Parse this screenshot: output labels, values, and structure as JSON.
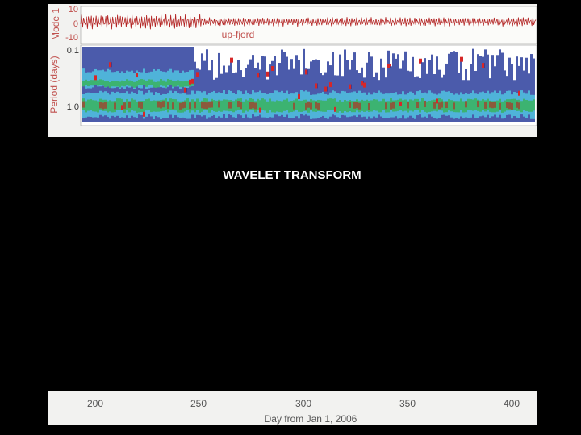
{
  "slide": {
    "title": "WAVELET TRANSFORM"
  },
  "figure": {
    "top_panel": {
      "y_label": "Mode 1",
      "annotation": "up-fjord",
      "y_ticks": [
        "10",
        "0",
        "-10"
      ]
    },
    "spectrogram": {
      "y_label": "Period (days)",
      "y_ticks": [
        "0.1",
        "1.0"
      ]
    },
    "x_axis": {
      "label": "Day from Jan 1, 2006",
      "ticks": [
        "200",
        "250",
        "300",
        "350",
        "400"
      ]
    }
  }
}
